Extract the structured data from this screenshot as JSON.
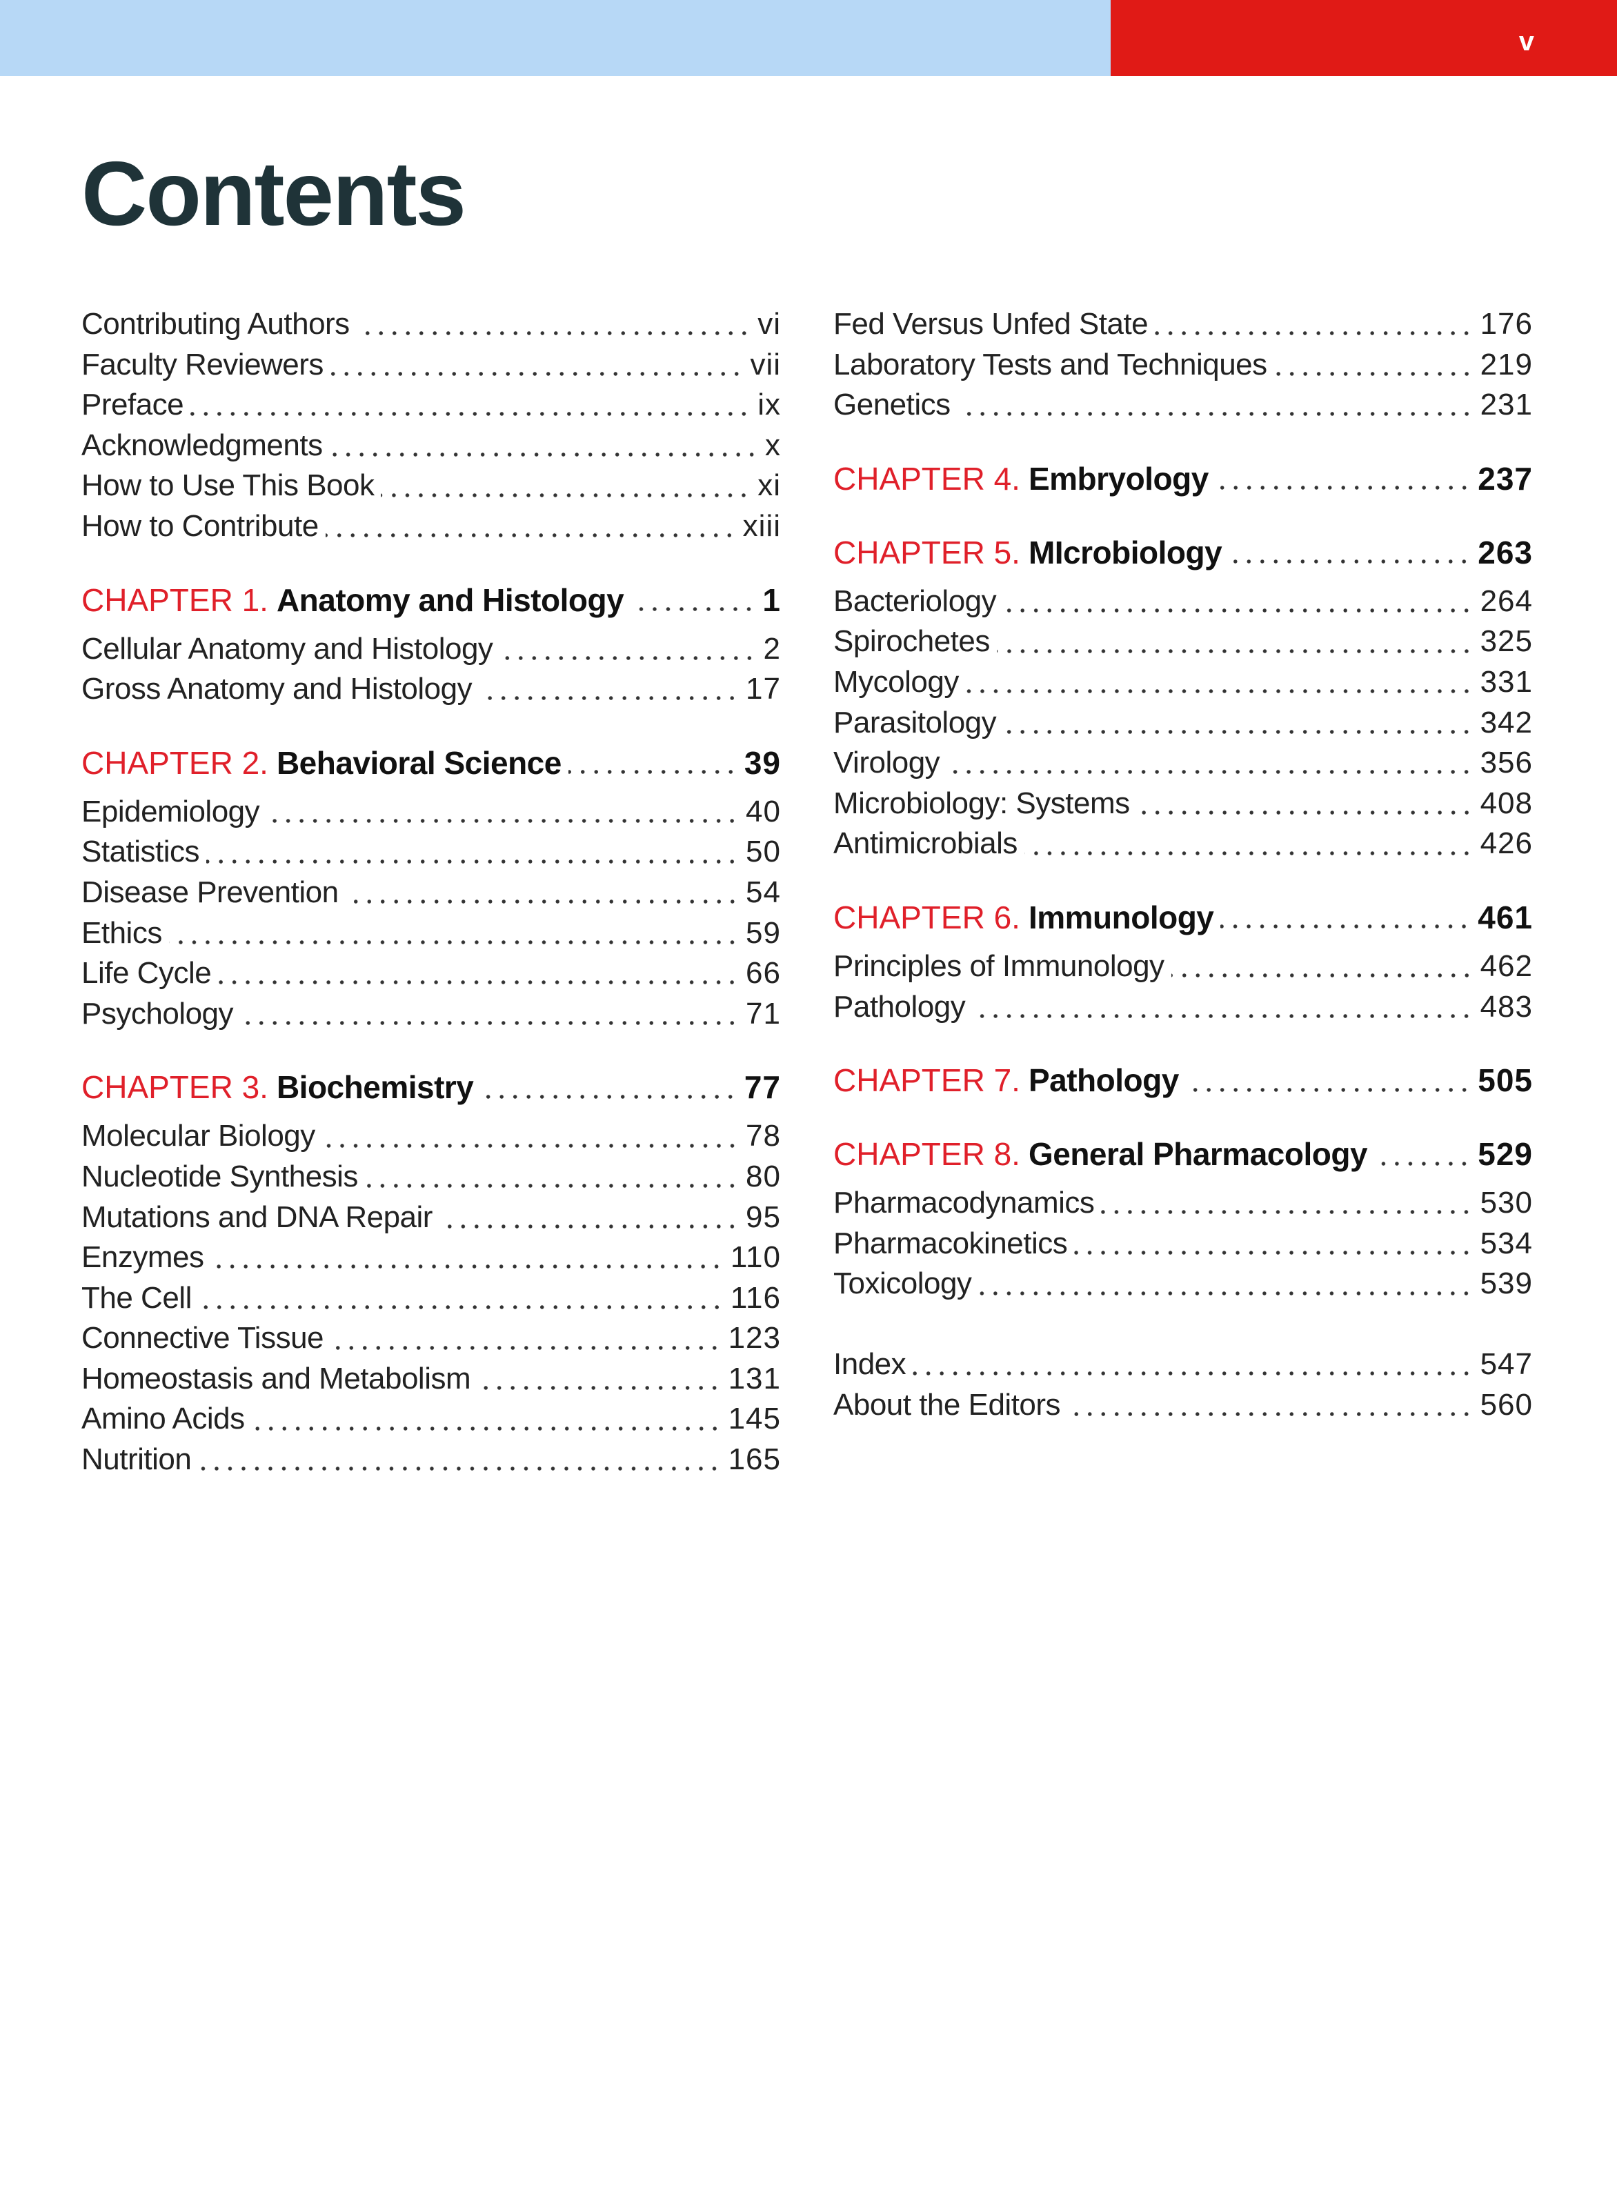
{
  "header": {
    "page_number": "v",
    "colors": {
      "band_left": "#b7d8f6",
      "band_right": "#e01a16",
      "chapter_label": "#e0202a"
    }
  },
  "title": "Contents",
  "left_column": [
    {
      "items": [
        {
          "title": "Contributing Authors",
          "page": "vi"
        },
        {
          "title": "Faculty Reviewers",
          "page": "vii"
        },
        {
          "title": "Preface",
          "page": "ix"
        },
        {
          "title": "Acknowledgments",
          "page": "x"
        },
        {
          "title": "How to Use This Book",
          "page": "xi"
        },
        {
          "title": "How to Contribute",
          "page": "xiii"
        }
      ]
    },
    {
      "chapter": {
        "label": "CHAPTER 1.",
        "title": "Anatomy and Histology",
        "page": "1"
      },
      "items": [
        {
          "title": "Cellular Anatomy and Histology",
          "page": "2"
        },
        {
          "title": "Gross Anatomy and Histology",
          "page": "17"
        }
      ]
    },
    {
      "chapter": {
        "label": "CHAPTER 2.",
        "title": "Behavioral Science",
        "page": "39"
      },
      "items": [
        {
          "title": "Epidemiology",
          "page": "40"
        },
        {
          "title": "Statistics",
          "page": "50"
        },
        {
          "title": "Disease Prevention",
          "page": "54"
        },
        {
          "title": "Ethics",
          "page": "59"
        },
        {
          "title": "Life Cycle",
          "page": "66"
        },
        {
          "title": "Psychology",
          "page": "71"
        }
      ]
    },
    {
      "chapter": {
        "label": "CHAPTER 3.",
        "title": "Biochemistry",
        "page": "77"
      },
      "items": [
        {
          "title": "Molecular Biology",
          "page": "78"
        },
        {
          "title": "Nucleotide Synthesis",
          "page": "80"
        },
        {
          "title": "Mutations and DNA Repair",
          "page": "95"
        },
        {
          "title": "Enzymes",
          "page": "110"
        },
        {
          "title": "The Cell",
          "page": "116"
        },
        {
          "title": "Connective Tissue",
          "page": "123"
        },
        {
          "title": "Homeostasis and Metabolism",
          "page": "131"
        },
        {
          "title": "Amino Acids",
          "page": "145"
        },
        {
          "title": "Nutrition",
          "page": "165"
        }
      ]
    }
  ],
  "right_column": [
    {
      "items": [
        {
          "title": "Fed Versus Unfed State",
          "page": "176"
        },
        {
          "title": "Laboratory Tests and Techniques",
          "page": "219"
        },
        {
          "title": "Genetics",
          "page": "231"
        }
      ]
    },
    {
      "chapter": {
        "label": "CHAPTER 4.",
        "title": "Embryology",
        "page": "237"
      },
      "items": []
    },
    {
      "chapter": {
        "label": "CHAPTER 5.",
        "title": "MIcrobiology",
        "page": "263"
      },
      "items": [
        {
          "title": "Bacteriology",
          "page": "264"
        },
        {
          "title": "Spirochetes",
          "page": "325"
        },
        {
          "title": "Mycology",
          "page": "331"
        },
        {
          "title": "Parasitology",
          "page": "342"
        },
        {
          "title": "Virology",
          "page": "356"
        },
        {
          "title": "Microbiology: Systems",
          "page": "408"
        },
        {
          "title": "Antimicrobials",
          "page": "426"
        }
      ]
    },
    {
      "chapter": {
        "label": "CHAPTER 6.",
        "title": "Immunology",
        "page": "461"
      },
      "items": [
        {
          "title": "Principles of Immunology",
          "page": "462"
        },
        {
          "title": "Pathology",
          "page": "483"
        }
      ]
    },
    {
      "chapter": {
        "label": "CHAPTER 7.",
        "title": "Pathology",
        "page": "505"
      },
      "items": []
    },
    {
      "chapter": {
        "label": "CHAPTER 8.",
        "title": "General Pharmacology",
        "page": "529"
      },
      "items": [
        {
          "title": "Pharmacodynamics",
          "page": "530"
        },
        {
          "title": "Pharmacokinetics",
          "page": "534"
        },
        {
          "title": "Toxicology",
          "page": "539"
        }
      ]
    },
    {
      "items": [
        {
          "title": "Index",
          "page": "547"
        },
        {
          "title": "About the Editors",
          "page": "560"
        }
      ]
    }
  ]
}
